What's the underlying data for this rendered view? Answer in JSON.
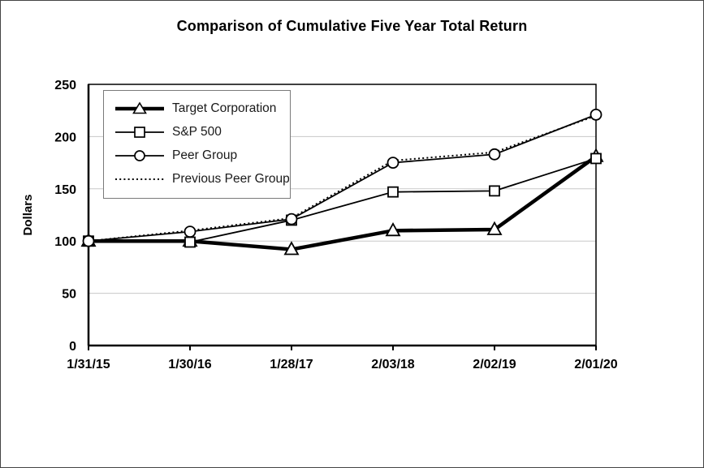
{
  "page": {
    "background_color": "#ffffff",
    "border_color": "#444444"
  },
  "chart": {
    "title": "Comparison of Cumulative Five Year Total Return",
    "y_axis_label": "Dollars"
  },
  "chart_data": {
    "type": "line",
    "title": "Comparison of Cumulative Five Year Total Return",
    "xlabel": "",
    "ylabel": "Dollars",
    "categories": [
      "1/31/15",
      "1/30/16",
      "1/28/17",
      "2/03/18",
      "2/02/19",
      "2/01/20"
    ],
    "y_ticks": [
      0,
      50,
      100,
      150,
      200,
      250
    ],
    "ylim": [
      0,
      250
    ],
    "grid": "horizontal",
    "legend_position": "top-left-inside",
    "series": [
      {
        "name": "Target Corporation",
        "marker": "triangle",
        "line": "solid-thick",
        "values": [
          100,
          100,
          92,
          110,
          111,
          181
        ]
      },
      {
        "name": "S&P 500",
        "marker": "square",
        "line": "solid",
        "values": [
          100,
          99,
          120,
          147,
          148,
          179
        ]
      },
      {
        "name": "Peer Group",
        "marker": "circle",
        "line": "solid",
        "values": [
          100,
          109,
          121,
          175,
          183,
          221
        ]
      },
      {
        "name": "Previous Peer Group",
        "marker": "none",
        "line": "dotted",
        "values": [
          100,
          110,
          122,
          177,
          185,
          220
        ]
      }
    ],
    "colors": {
      "series": "#000000",
      "grid": "#c8c8c8",
      "text": "#000000"
    }
  }
}
